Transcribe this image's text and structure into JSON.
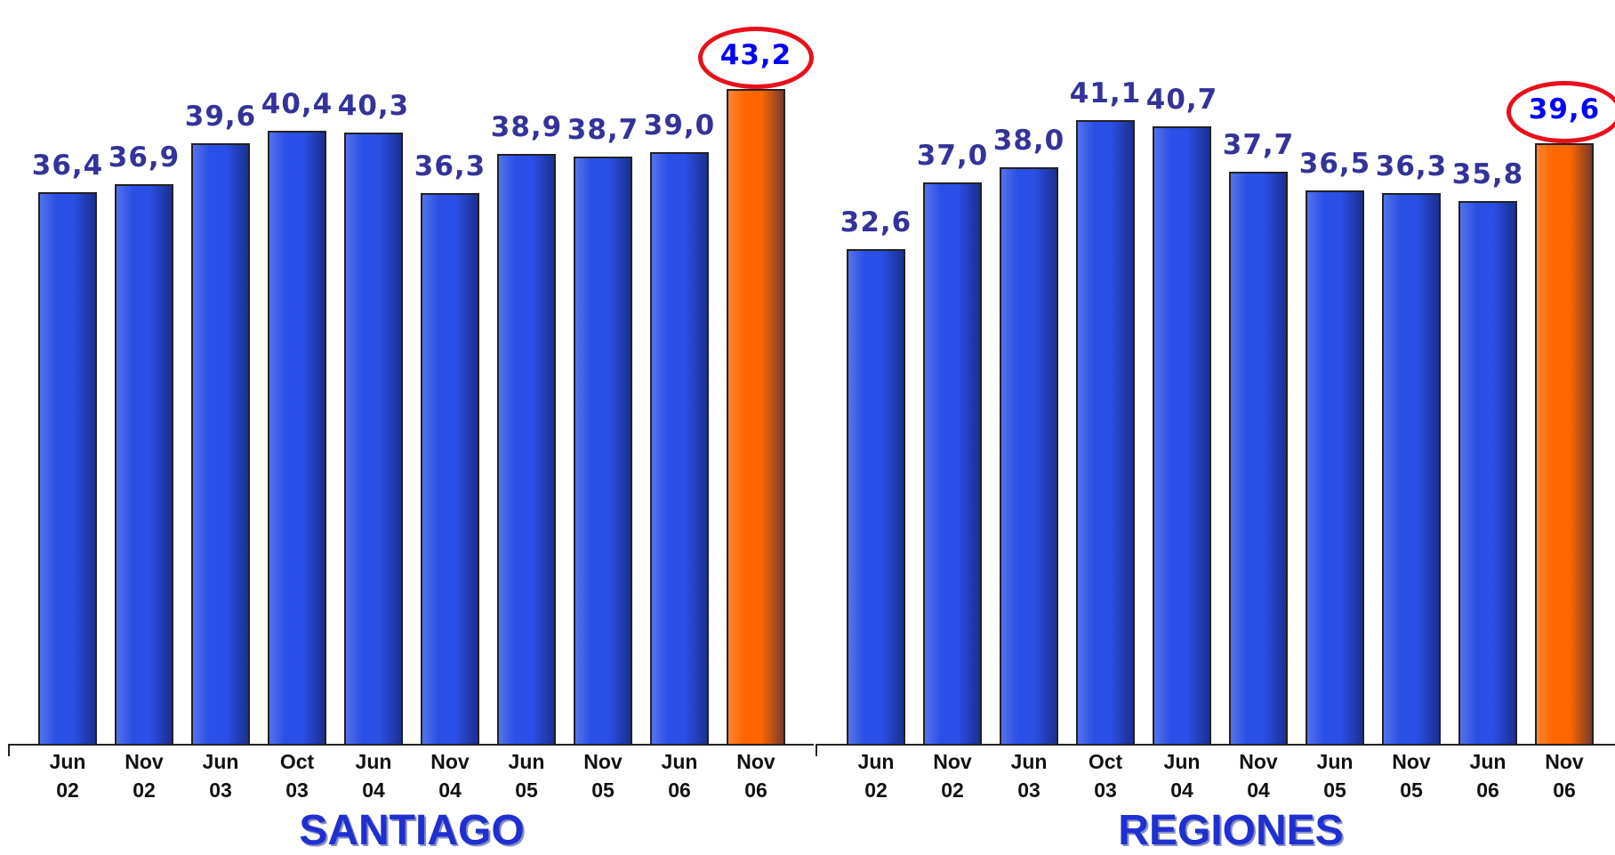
{
  "chart_data": [
    {
      "type": "bar",
      "title": "SANTIAGO",
      "categories": [
        "Jun 02",
        "Nov 02",
        "Jun 03",
        "Oct 03",
        "Jun 04",
        "Nov 04",
        "Jun 05",
        "Nov 05",
        "Jun 06",
        "Nov 06"
      ],
      "values": [
        36.4,
        36.9,
        39.6,
        40.4,
        40.3,
        36.3,
        38.9,
        38.7,
        39.0,
        43.2
      ],
      "value_labels": [
        "36,4",
        "36,9",
        "39,6",
        "40,4",
        "40,3",
        "36,3",
        "38,9",
        "38,7",
        "39,0",
        "43,2"
      ],
      "colors": [
        "#2a4fe6",
        "#2a4fe6",
        "#2a4fe6",
        "#2a4fe6",
        "#2a4fe6",
        "#2a4fe6",
        "#2a4fe6",
        "#2a4fe6",
        "#2a4fe6",
        "#ff6600"
      ],
      "highlight_index": 9,
      "ylim": [
        0,
        45
      ]
    },
    {
      "type": "bar",
      "title": "REGIONES",
      "categories": [
        "Jun 02",
        "Nov 02",
        "Jun 03",
        "Oct 03",
        "Jun 04",
        "Nov 04",
        "Jun 05",
        "Nov 05",
        "Jun 06",
        "Nov 06"
      ],
      "values": [
        32.6,
        37.0,
        38.0,
        41.1,
        40.7,
        37.7,
        36.5,
        36.3,
        35.8,
        39.6
      ],
      "value_labels": [
        "32,6",
        "37,0",
        "38,0",
        "41,1",
        "40,7",
        "37,7",
        "36,5",
        "36,3",
        "35,8",
        "39,6"
      ],
      "colors": [
        "#2a4fe6",
        "#2a4fe6",
        "#2a4fe6",
        "#2a4fe6",
        "#2a4fe6",
        "#2a4fe6",
        "#2a4fe6",
        "#2a4fe6",
        "#2a4fe6",
        "#ff6600"
      ],
      "highlight_index": 9,
      "ylim": [
        0,
        45
      ]
    }
  ]
}
